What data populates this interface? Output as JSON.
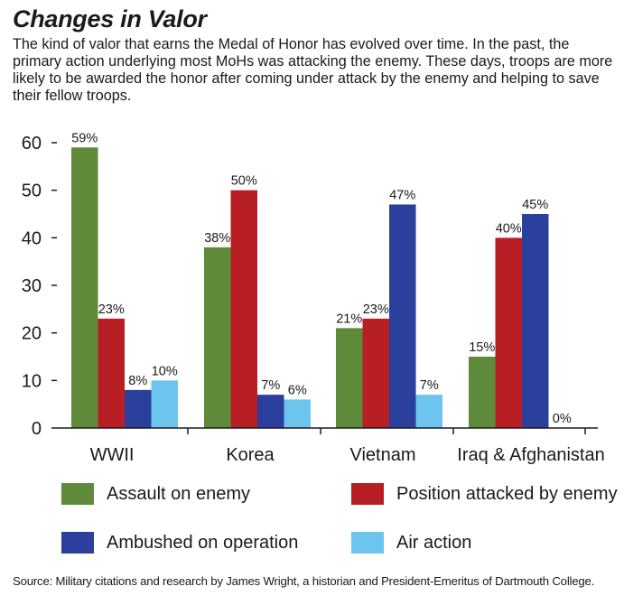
{
  "title": "Changes in Valor",
  "subtitle": "The kind of valor that earns the Medal of Honor has evolved over time. In the past, the primary action underlying most MoHs was attacking the enemy. These days, troops are more likely to be awarded the honor after coming under attack by the enemy and helping to save their fellow troops.",
  "source": "Source: Military citations and research by James Wright, a historian and President-Emeritus of Dartmouth College.",
  "chart_data": {
    "type": "bar",
    "title": "Changes in Valor",
    "xlabel": "",
    "ylabel": "",
    "ylim": [
      0,
      60
    ],
    "yticks": [
      0,
      10,
      20,
      30,
      40,
      50,
      60
    ],
    "grid": false,
    "legend_position": "bottom",
    "categories": [
      "WWII",
      "Korea",
      "Vietnam",
      "Iraq & Afghanistan"
    ],
    "series": [
      {
        "name": "Assault on enemy",
        "color": "#5f8a3a",
        "values": [
          59,
          38,
          21,
          15
        ]
      },
      {
        "name": "Position attacked by enemy",
        "color": "#b81f25",
        "values": [
          23,
          50,
          23,
          40
        ]
      },
      {
        "name": "Ambushed on operation",
        "color": "#2b3f9c",
        "values": [
          8,
          7,
          47,
          45
        ]
      },
      {
        "name": "Air action",
        "color": "#6cc4ef",
        "values": [
          10,
          6,
          7,
          0
        ]
      }
    ],
    "value_suffix": "%"
  },
  "legend_order": [
    0,
    2,
    1,
    3
  ]
}
